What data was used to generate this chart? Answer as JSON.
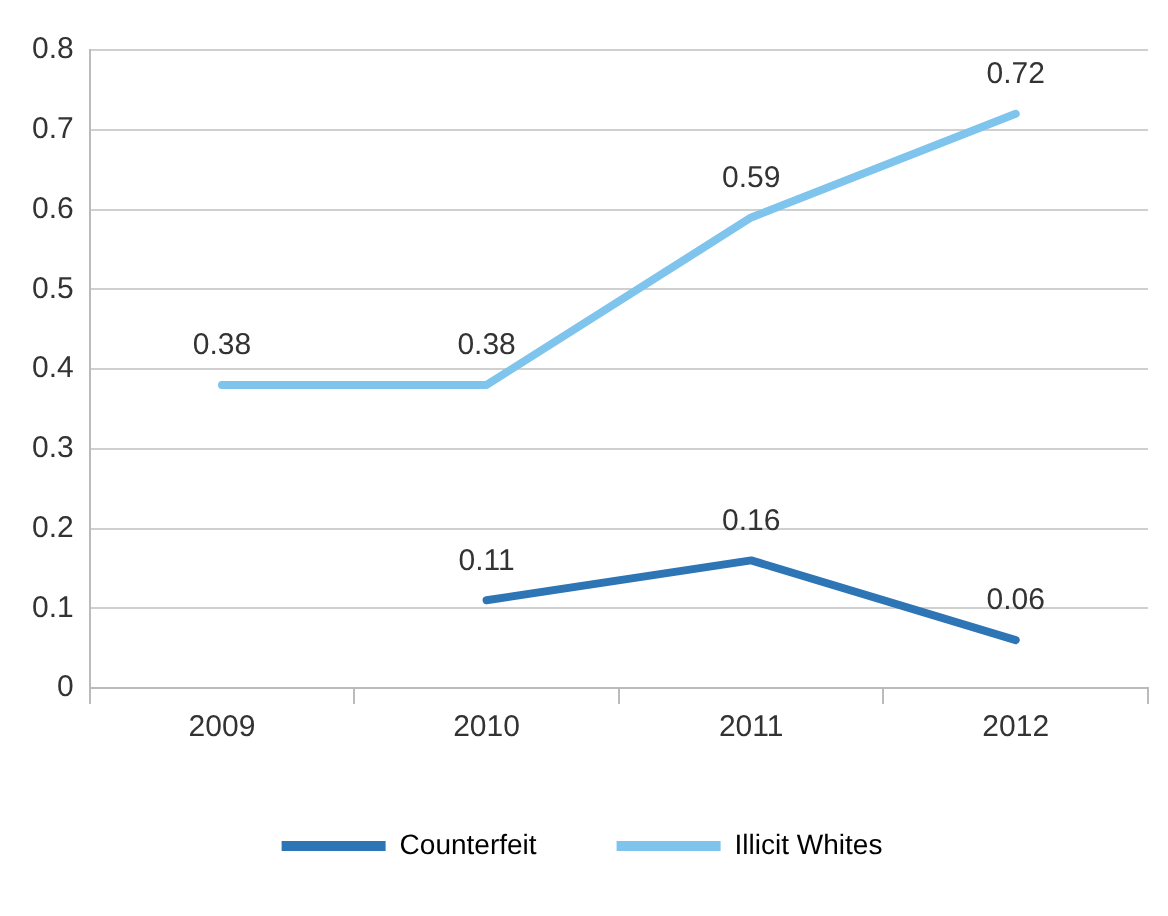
{
  "chart_data": {
    "type": "line",
    "categories": [
      "2009",
      "2010",
      "2011",
      "2012"
    ],
    "series": [
      {
        "name": "Counterfeit",
        "color": "#2e75b6",
        "values": [
          null,
          0.11,
          0.16,
          0.06
        ]
      },
      {
        "name": "Illicit Whites",
        "color": "#7fc4ec",
        "values": [
          0.38,
          0.38,
          0.59,
          0.72
        ]
      }
    ],
    "ylim": [
      0,
      0.8
    ],
    "yticks": [
      0,
      0.1,
      0.2,
      0.3,
      0.4,
      0.5,
      0.6,
      0.7,
      0.8
    ],
    "grid": "y",
    "legend": "bottom",
    "data_labels": true,
    "marker": "none",
    "line_style": "solid"
  }
}
